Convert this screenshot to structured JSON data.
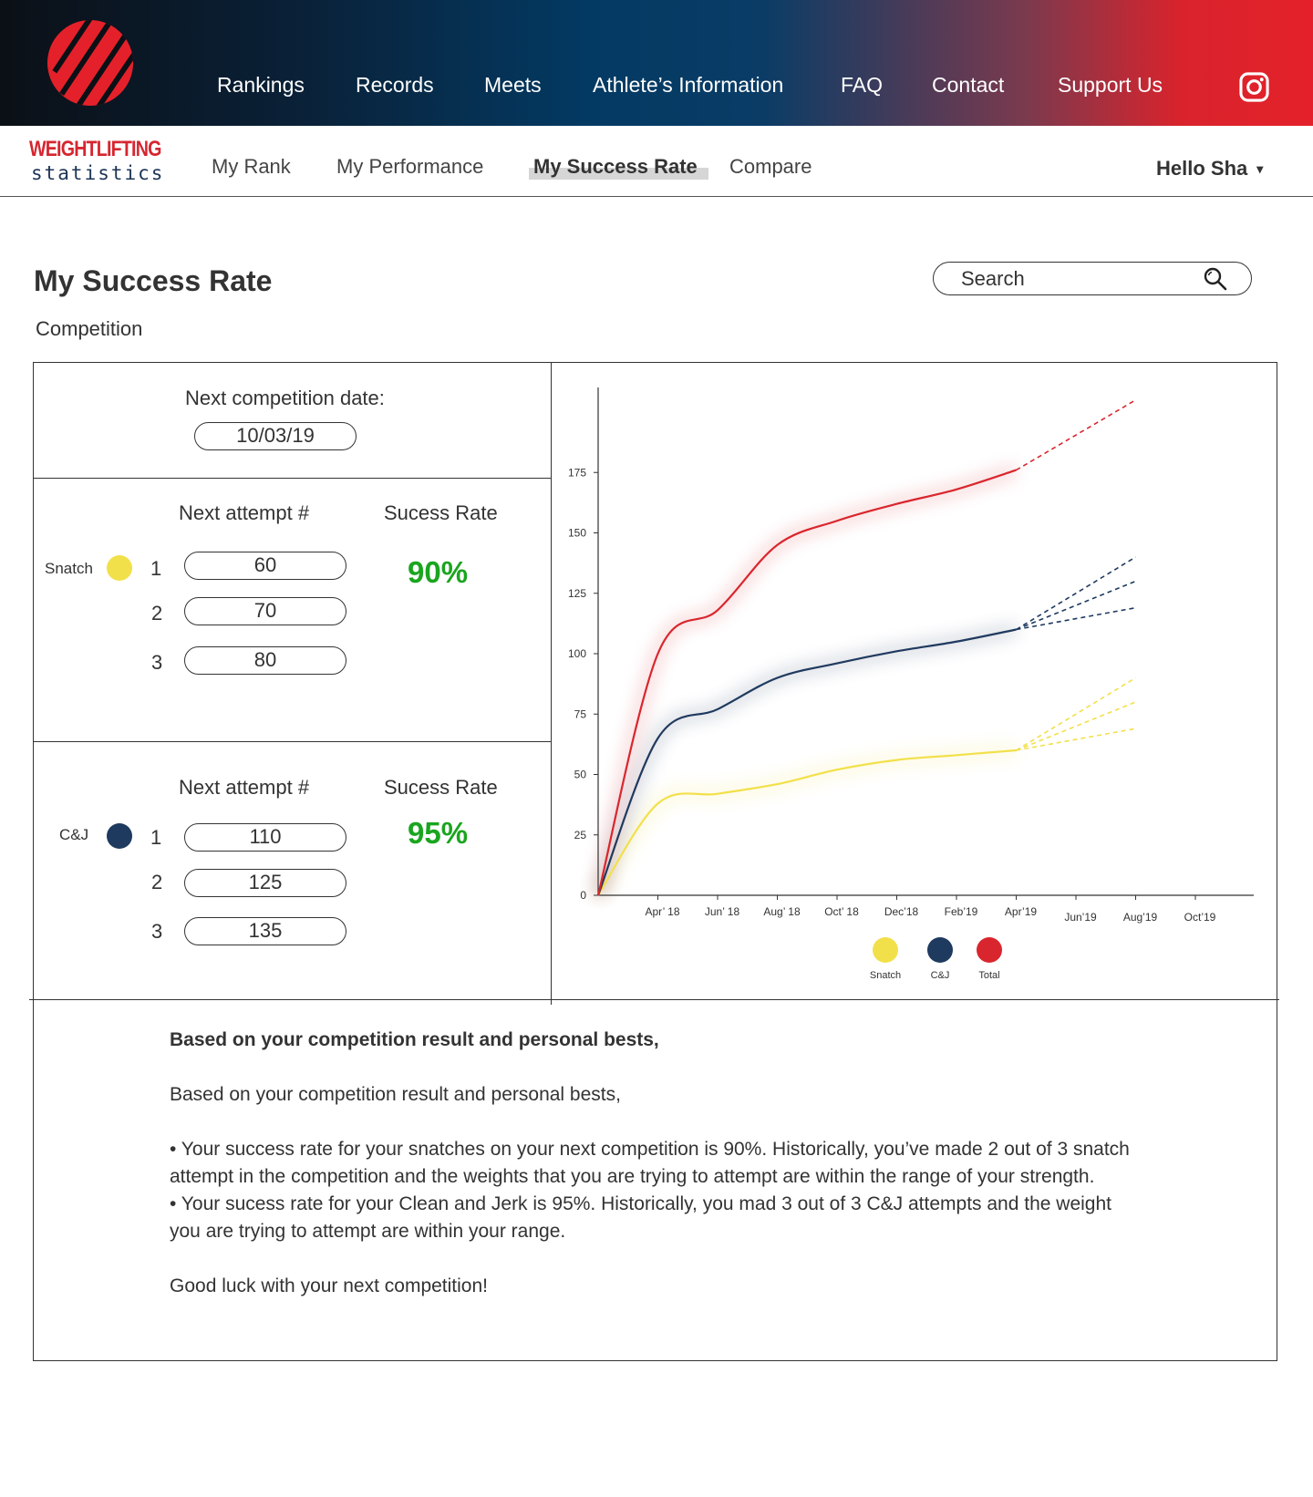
{
  "header": {
    "nav": [
      "Rankings",
      "Records",
      "Meets",
      "Athlete’s Information",
      "FAQ",
      "Contact",
      "Support Us"
    ],
    "logo_icon": "weightlifting-logo-icon",
    "social_icon": "instagram-icon"
  },
  "brand": {
    "line1": "WEIGHTLIFTING",
    "line2": "statistics"
  },
  "subnav": {
    "items": [
      "My Rank",
      "My Performance",
      "My Success Rate",
      "Compare"
    ],
    "active": "My Success Rate",
    "user": "Hello Sha",
    "user_caret": "▾"
  },
  "page": {
    "title": "My Success Rate",
    "subtitle": "Competition"
  },
  "search": {
    "placeholder": "Search",
    "icon": "search-icon"
  },
  "competition": {
    "label": "Next competition date:",
    "date": "10/03/19"
  },
  "snatch": {
    "name": "Snatch",
    "color": "#f2e04a",
    "attempt_header": "Next attempt #",
    "rate_header": "Sucess Rate",
    "attempts": [
      {
        "no": "1",
        "weight": "60"
      },
      {
        "no": "2",
        "weight": "70"
      },
      {
        "no": "3",
        "weight": "80"
      }
    ],
    "rate": "90%"
  },
  "cj": {
    "name": "C&J",
    "color": "#1f3a5f",
    "attempt_header": "Next attempt #",
    "rate_header": "Sucess Rate",
    "attempts": [
      {
        "no": "1",
        "weight": "110"
      },
      {
        "no": "2",
        "weight": "125"
      },
      {
        "no": "3",
        "weight": "135"
      }
    ],
    "rate": "95%"
  },
  "chart_data": {
    "type": "line",
    "x": [
      "Apr’ 18",
      "Jun’ 18",
      "Aug’ 18",
      "Oct’ 18",
      "Dec’18",
      "Feb’19",
      "Apr’19",
      "Jun’19",
      "Aug’19",
      "Oct’19"
    ],
    "yticks": [
      0,
      25,
      50,
      75,
      100,
      125,
      150,
      175
    ],
    "ylim": [
      0,
      210
    ],
    "series": [
      {
        "name": "Snatch",
        "color": "#f2e04a",
        "points": [
          [
            0,
            0
          ],
          [
            1,
            38
          ],
          [
            2,
            42
          ],
          [
            3,
            46
          ],
          [
            4,
            52
          ],
          [
            5,
            56
          ],
          [
            6,
            58
          ],
          [
            7,
            60
          ]
        ],
        "projection": [
          [
            7,
            60
          ],
          [
            9,
            90
          ],
          [
            9,
            80
          ],
          [
            9,
            69
          ]
        ]
      },
      {
        "name": "C&J",
        "color": "#1f3a5f",
        "points": [
          [
            0,
            0
          ],
          [
            1,
            65
          ],
          [
            2,
            77
          ],
          [
            3,
            90
          ],
          [
            4,
            96
          ],
          [
            5,
            101
          ],
          [
            6,
            105
          ],
          [
            7,
            110
          ]
        ],
        "projection": [
          [
            7,
            110
          ],
          [
            9,
            140
          ],
          [
            9,
            130
          ],
          [
            9,
            119
          ]
        ]
      },
      {
        "name": "Total",
        "color": "#d9262e",
        "points": [
          [
            0,
            0
          ],
          [
            1,
            100
          ],
          [
            2,
            118
          ],
          [
            3,
            145
          ],
          [
            4,
            155
          ],
          [
            5,
            162
          ],
          [
            6,
            168
          ],
          [
            7,
            176
          ]
        ],
        "projection": [
          [
            7,
            176
          ],
          [
            9,
            205
          ]
        ]
      }
    ],
    "legend": "bottom",
    "grid": false
  },
  "summary": {
    "heading": "Based on your competition result and personal bests,",
    "intro": "Based on your competition result and personal bests,",
    "bullet1": "• Your success rate for your snatches on your next competition is 90%. Historically, you’ve made 2 out of 3 snatch attempt in the competition and the weights that you are trying to attempt are within the range of your strength.",
    "bullet2": "• Your sucess rate for your Clean and Jerk is 95%. Historically, you mad 3 out of 3 C&J attempts and the weight you are trying to attempt are within your range.",
    "closing": "Good luck with your next competition!"
  }
}
